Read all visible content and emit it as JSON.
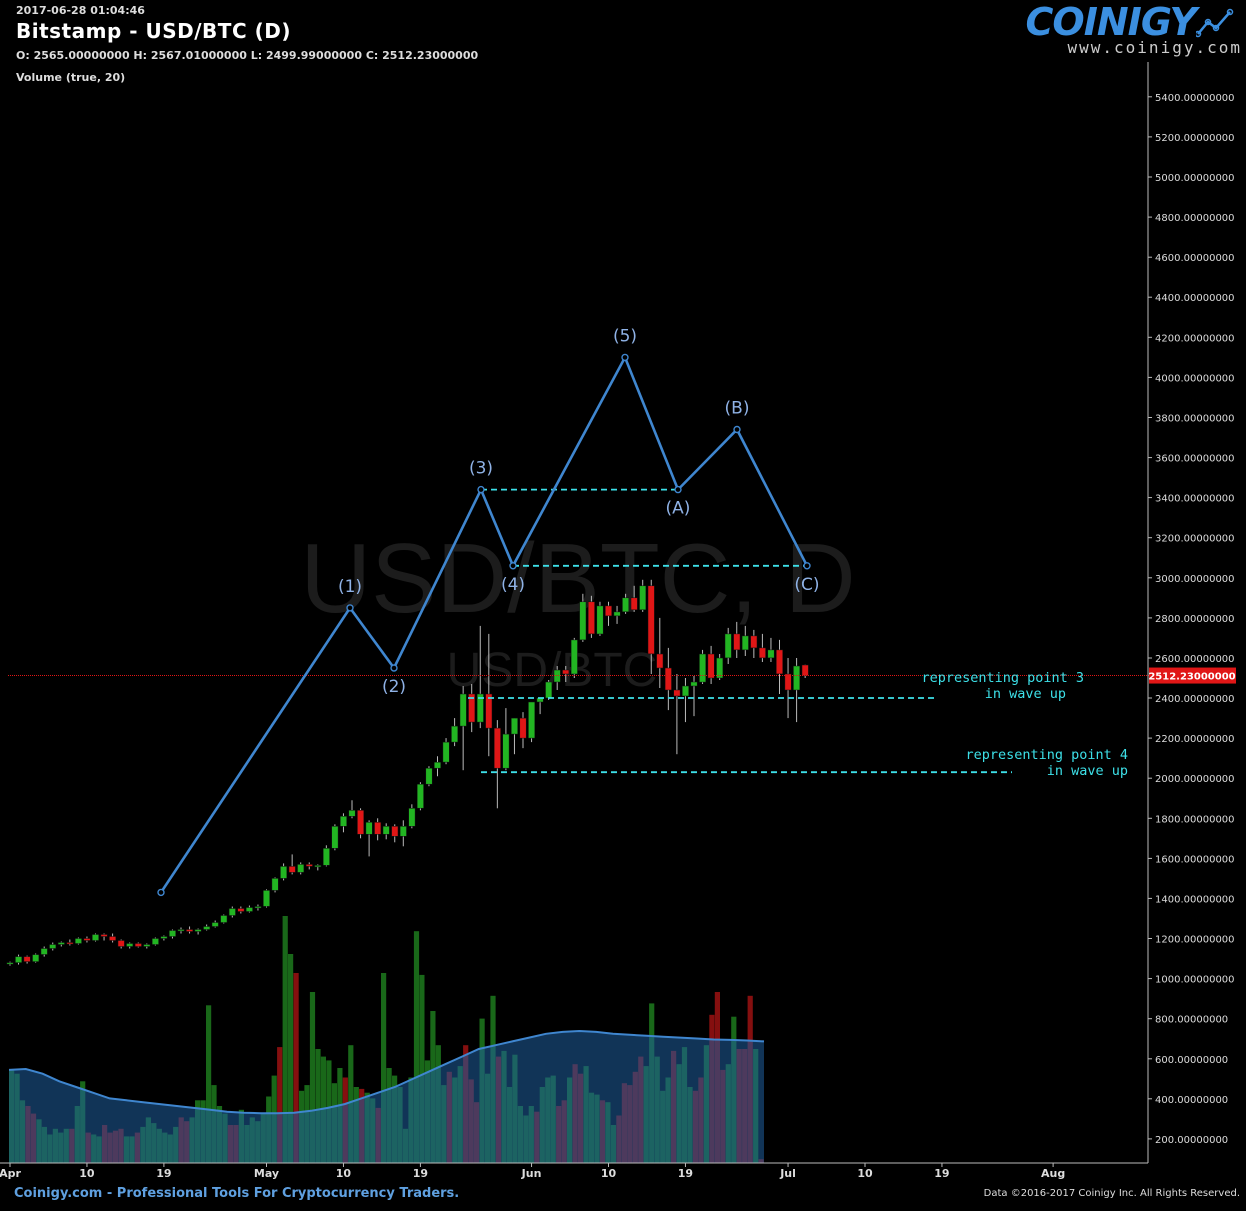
{
  "header": {
    "timestamp": "2017-06-28 01:04:46",
    "title": "Bitstamp - USD/BTC (D)",
    "ohlc": "O: 2565.00000000 H: 2567.01000000 L: 2499.99000000 C: 2512.23000000",
    "volume_label": "Volume (true, 20)"
  },
  "branding": {
    "logo_text": "COINIGY",
    "logo_url": "www.coinigy.com",
    "footer_left": "Coinigy.com - Professional Tools For Cryptocurrency Traders.",
    "footer_right": "Data ©2016-2017 Coinigy Inc. All Rights Reserved."
  },
  "colors": {
    "up": "#22b522",
    "down": "#e01616",
    "wave": "#3f86cf",
    "annotation": "#3de0e8",
    "volume_ma_fill": "#1f5f9e",
    "volume_ma_line": "#3f86cf",
    "current_price": "#e01616"
  },
  "chart_data": {
    "type": "candlestick",
    "watermark_large": "USD/BTC, D",
    "watermark_small": "USD/BTC",
    "ylim": [
      0,
      5550
    ],
    "y_ticks": [
      200,
      400,
      600,
      800,
      1000,
      1200,
      1400,
      1600,
      1800,
      2000,
      2200,
      2400,
      2600,
      2800,
      3000,
      3200,
      3400,
      3600,
      3800,
      4000,
      4200,
      4400,
      4600,
      4800,
      5000,
      5200,
      5400
    ],
    "y_tick_format_decimals": 8,
    "x_range_days": [
      0,
      140
    ],
    "x_ticks": [
      {
        "day": 0,
        "label": "Apr"
      },
      {
        "day": 9,
        "label": "10"
      },
      {
        "day": 18,
        "label": "19"
      },
      {
        "day": 30,
        "label": "May"
      },
      {
        "day": 39,
        "label": "10"
      },
      {
        "day": 48,
        "label": "19"
      },
      {
        "day": 61,
        "label": "Jun"
      },
      {
        "day": 70,
        "label": "10"
      },
      {
        "day": 79,
        "label": "19"
      },
      {
        "day": 91,
        "label": "Jul"
      },
      {
        "day": 100,
        "label": "10"
      },
      {
        "day": 109,
        "label": "19"
      },
      {
        "day": 122,
        "label": "Aug"
      }
    ],
    "current_price": 2512.23,
    "current_price_label": "2512.23000000",
    "candles": [
      [
        1075,
        1085,
        1065,
        1080
      ],
      [
        1080,
        1120,
        1070,
        1110
      ],
      [
        1110,
        1115,
        1075,
        1085
      ],
      [
        1085,
        1125,
        1080,
        1120
      ],
      [
        1120,
        1160,
        1110,
        1150
      ],
      [
        1150,
        1180,
        1140,
        1170
      ],
      [
        1170,
        1185,
        1160,
        1180
      ],
      [
        1180,
        1195,
        1165,
        1175
      ],
      [
        1175,
        1205,
        1170,
        1200
      ],
      [
        1200,
        1210,
        1180,
        1190
      ],
      [
        1190,
        1225,
        1185,
        1220
      ],
      [
        1220,
        1225,
        1190,
        1210
      ],
      [
        1210,
        1225,
        1180,
        1190
      ],
      [
        1190,
        1195,
        1150,
        1160
      ],
      [
        1160,
        1180,
        1150,
        1175
      ],
      [
        1175,
        1180,
        1155,
        1160
      ],
      [
        1160,
        1175,
        1150,
        1170
      ],
      [
        1170,
        1205,
        1165,
        1200
      ],
      [
        1200,
        1215,
        1190,
        1210
      ],
      [
        1210,
        1245,
        1200,
        1240
      ],
      [
        1240,
        1255,
        1225,
        1245
      ],
      [
        1245,
        1260,
        1225,
        1235
      ],
      [
        1235,
        1250,
        1220,
        1245
      ],
      [
        1245,
        1270,
        1240,
        1260
      ],
      [
        1260,
        1290,
        1255,
        1280
      ],
      [
        1280,
        1320,
        1275,
        1315
      ],
      [
        1315,
        1360,
        1305,
        1350
      ],
      [
        1350,
        1360,
        1325,
        1335
      ],
      [
        1335,
        1365,
        1330,
        1355
      ],
      [
        1355,
        1370,
        1340,
        1360
      ],
      [
        1360,
        1445,
        1355,
        1440
      ],
      [
        1440,
        1505,
        1430,
        1500
      ],
      [
        1500,
        1575,
        1490,
        1560
      ],
      [
        1560,
        1620,
        1520,
        1530
      ],
      [
        1530,
        1580,
        1520,
        1570
      ],
      [
        1570,
        1580,
        1545,
        1560
      ],
      [
        1560,
        1570,
        1540,
        1565
      ],
      [
        1565,
        1665,
        1560,
        1650
      ],
      [
        1650,
        1770,
        1640,
        1760
      ],
      [
        1760,
        1825,
        1730,
        1810
      ],
      [
        1810,
        1890,
        1800,
        1840
      ],
      [
        1840,
        1850,
        1700,
        1720
      ],
      [
        1720,
        1790,
        1610,
        1780
      ],
      [
        1780,
        1800,
        1690,
        1720
      ],
      [
        1720,
        1775,
        1695,
        1760
      ],
      [
        1760,
        1770,
        1680,
        1710
      ],
      [
        1710,
        1790,
        1660,
        1760
      ],
      [
        1760,
        1870,
        1750,
        1850
      ],
      [
        1850,
        1980,
        1840,
        1970
      ],
      [
        1970,
        2060,
        1960,
        2050
      ],
      [
        2050,
        2110,
        2010,
        2080
      ],
      [
        2080,
        2200,
        2070,
        2180
      ],
      [
        2180,
        2300,
        2160,
        2260
      ],
      [
        2260,
        2460,
        2040,
        2420
      ],
      [
        2420,
        2470,
        2230,
        2280
      ],
      [
        2280,
        2760,
        2250,
        2420
      ],
      [
        2420,
        2720,
        2110,
        2250
      ],
      [
        2250,
        2290,
        1850,
        2050
      ],
      [
        2050,
        2350,
        2040,
        2220
      ],
      [
        2220,
        2300,
        2120,
        2300
      ],
      [
        2300,
        2330,
        2150,
        2200
      ],
      [
        2200,
        2340,
        2180,
        2380
      ],
      [
        2380,
        2400,
        2320,
        2400
      ],
      [
        2400,
        2490,
        2390,
        2480
      ],
      [
        2480,
        2560,
        2440,
        2540
      ],
      [
        2540,
        2560,
        2480,
        2520
      ],
      [
        2520,
        2700,
        2500,
        2690
      ],
      [
        2690,
        2920,
        2680,
        2880
      ],
      [
        2880,
        2910,
        2700,
        2720
      ],
      [
        2720,
        2880,
        2710,
        2860
      ],
      [
        2860,
        2880,
        2760,
        2810
      ],
      [
        2810,
        2860,
        2770,
        2830
      ],
      [
        2830,
        2920,
        2820,
        2900
      ],
      [
        2900,
        2960,
        2830,
        2840
      ],
      [
        2840,
        2990,
        2830,
        2960
      ],
      [
        2960,
        2990,
        2520,
        2620
      ],
      [
        2620,
        2800,
        2450,
        2550
      ],
      [
        2550,
        2650,
        2340,
        2440
      ],
      [
        2440,
        2520,
        2120,
        2410
      ],
      [
        2410,
        2500,
        2280,
        2460
      ],
      [
        2460,
        2510,
        2310,
        2480
      ],
      [
        2480,
        2640,
        2470,
        2620
      ],
      [
        2620,
        2660,
        2470,
        2500
      ],
      [
        2500,
        2620,
        2490,
        2600
      ],
      [
        2600,
        2750,
        2570,
        2720
      ],
      [
        2720,
        2780,
        2600,
        2640
      ],
      [
        2640,
        2760,
        2610,
        2710
      ],
      [
        2710,
        2740,
        2600,
        2650
      ],
      [
        2650,
        2720,
        2580,
        2600
      ],
      [
        2600,
        2700,
        2580,
        2640
      ],
      [
        2640,
        2690,
        2420,
        2520
      ],
      [
        2520,
        2600,
        2300,
        2440
      ],
      [
        2440,
        2600,
        2280,
        2560
      ],
      [
        2565,
        2567,
        2500,
        2512
      ]
    ],
    "volumes": [
      490,
      470,
      330,
      300,
      260,
      230,
      190,
      150,
      180,
      160,
      180,
      180,
      300,
      430,
      160,
      150,
      140,
      200,
      160,
      170,
      180,
      140,
      140,
      160,
      190,
      240,
      210,
      180,
      160,
      150,
      190,
      240,
      220,
      240,
      330,
      330,
      830,
      410,
      300,
      260,
      200,
      200,
      280,
      200,
      240,
      220,
      260,
      350,
      460,
      610,
      1300,
      1100,
      1000,
      380,
      410,
      900,
      600,
      560,
      540,
      420,
      500,
      450,
      620,
      400,
      390,
      370,
      340,
      290,
      1000,
      500,
      460,
      400,
      180,
      450,
      1220,
      990,
      540,
      800,
      620,
      410,
      480,
      450,
      510,
      620,
      440,
      320,
      760,
      470,
      880,
      560,
      590,
      400,
      570,
      300,
      250,
      300,
      270,
      400,
      450,
      460,
      300,
      330,
      450,
      520,
      470,
      510,
      370,
      360,
      330,
      320,
      200,
      250,
      420,
      410,
      480,
      560,
      510,
      840,
      560,
      380,
      450,
      590,
      520,
      610,
      400,
      380,
      450,
      620,
      780,
      900,
      490,
      520,
      770,
      600,
      600,
      880,
      600,
      20
    ],
    "volume_ma": [
      490,
      495,
      470,
      430,
      400,
      370,
      340,
      330,
      320,
      310,
      300,
      290,
      280,
      270,
      265,
      262,
      262,
      265,
      275,
      290,
      310,
      340,
      370,
      400,
      440,
      480,
      520,
      560,
      600,
      620,
      640,
      660,
      680,
      690,
      695,
      690,
      680,
      675,
      670,
      665,
      660,
      655,
      650,
      648,
      645,
      640
    ],
    "wave_points": [
      {
        "label": "",
        "price": 1430
      },
      {
        "label": "(1)",
        "price": 2850
      },
      {
        "label": "(2)",
        "price": 2550
      },
      {
        "label": "(3)",
        "price": 3440
      },
      {
        "label": "(4)",
        "price": 3060
      },
      {
        "label": "(5)",
        "price": 4100
      },
      {
        "label": "(A)",
        "price": 3440
      },
      {
        "label": "(B)",
        "price": 3740
      },
      {
        "label": "(C)",
        "price": 3060
      }
    ],
    "hlines": [
      {
        "price": 3440,
        "x_from_point": 3,
        "x_to_point": 6
      },
      {
        "price": 3060,
        "x_from_point": 4,
        "x_to_point": 8
      },
      {
        "price": 2400,
        "to_label": 0
      },
      {
        "price": 2030,
        "to_label": 1
      }
    ],
    "annotations": [
      {
        "lines": [
          "representing point 3",
          "in wave up"
        ],
        "price": 2440
      },
      {
        "lines": [
          "representing point 4",
          "in wave up"
        ],
        "price": 2060
      }
    ]
  }
}
